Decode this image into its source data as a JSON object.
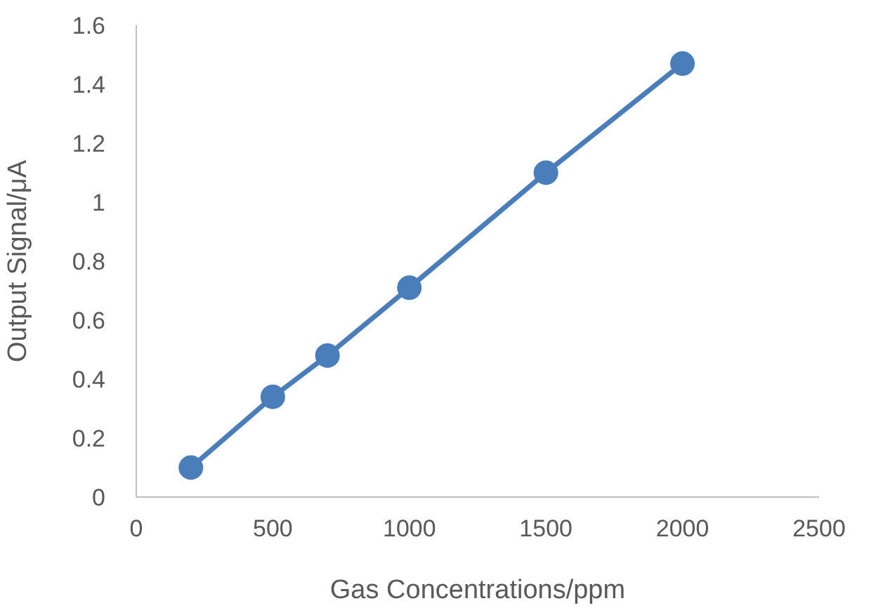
{
  "chart_data": {
    "type": "line",
    "xlabel": "Gas Concentrations/ppm",
    "ylabel": "Output Signal/μA",
    "x": [
      200,
      500,
      700,
      1000,
      1500,
      2000
    ],
    "series": [
      {
        "color": "#4a7ebb",
        "values": [
          0.1,
          0.34,
          0.48,
          0.71,
          1.1,
          1.47
        ]
      }
    ],
    "xlim": [
      0,
      2500
    ],
    "xticks": [
      0,
      500,
      1000,
      1500,
      2000,
      2500
    ],
    "ylim": [
      0,
      1.6
    ],
    "yticks": [
      0,
      0.2,
      0.4,
      0.6,
      0.8,
      1,
      1.2,
      1.4,
      1.6
    ],
    "grid": false,
    "legend": false,
    "marker": "circle",
    "line_style": "solid"
  }
}
